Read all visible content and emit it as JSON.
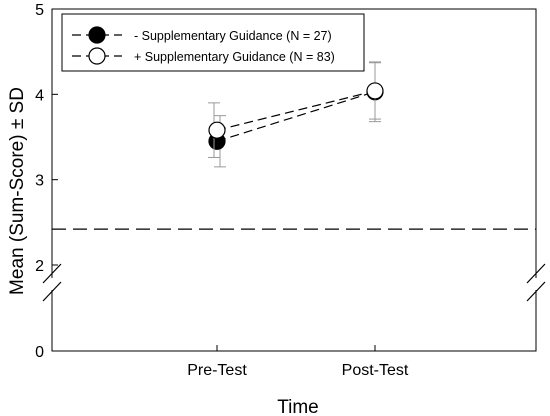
{
  "chart_data": {
    "type": "line",
    "title": "",
    "xlabel": "Time",
    "ylabel": "Mean (Sum-Score) ± SD",
    "categories": [
      "Pre-Test",
      "Post-Test"
    ],
    "ylim": [
      0,
      5
    ],
    "yticks": [
      "0",
      "2",
      "3",
      "4",
      "5"
    ],
    "y_axis_break": true,
    "grid": false,
    "legend_position": "top-left",
    "reference_line": {
      "y": 2.42,
      "style": "dashed"
    },
    "series": [
      {
        "name": "- Supplementary Guidance (N = 27)",
        "marker": "filled-circle",
        "color": "#000000",
        "values": [
          3.45,
          4.03
        ],
        "sd": [
          0.3,
          0.35
        ]
      },
      {
        "name": "+ Supplementary Guidance (N = 83)",
        "marker": "open-circle",
        "color": "#000000",
        "values": [
          3.58,
          4.04
        ],
        "sd": [
          0.32,
          0.33
        ]
      }
    ]
  }
}
